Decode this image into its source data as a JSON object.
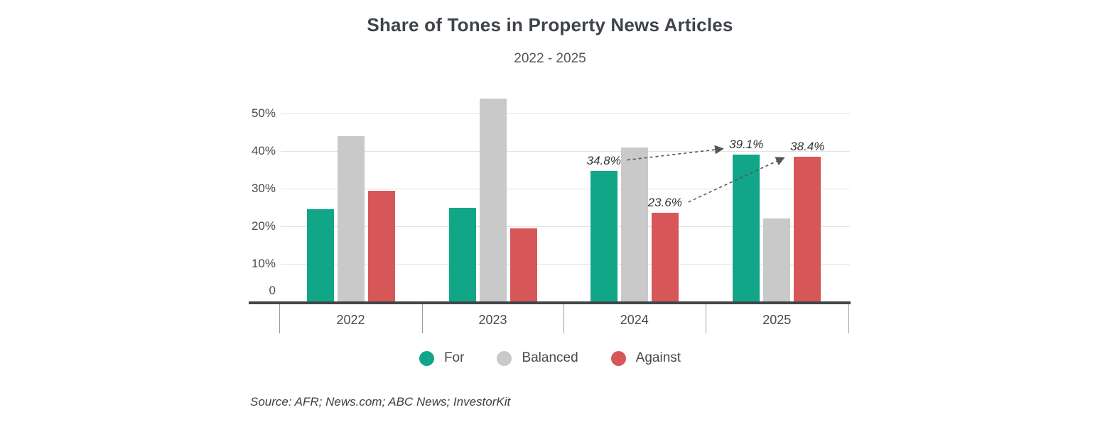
{
  "title": "Share of Tones in Property News Articles",
  "subtitle": "2022 - 2025",
  "source": "Source: AFR; News.com; ABC News; InvestorKit",
  "colors": {
    "for": "#12a689",
    "balanced": "#c9c9c9",
    "against": "#d75759",
    "axis": "#41464b",
    "gridline": "#e3e3e3"
  },
  "legend": [
    {
      "label": "For",
      "color": "#12a689"
    },
    {
      "label": "Balanced",
      "color": "#c9c9c9"
    },
    {
      "label": "Against",
      "color": "#d75759"
    }
  ],
  "chart_data": {
    "type": "bar",
    "title": "Share of Tones in Property News Articles",
    "subtitle": "2022 - 2025",
    "categories": [
      "2022",
      "2023",
      "2024",
      "2025"
    ],
    "series": [
      {
        "name": "For",
        "color": "#12a689",
        "values": [
          24.5,
          25.0,
          34.8,
          39.1
        ]
      },
      {
        "name": "Balanced",
        "color": "#c9c9c9",
        "values": [
          44.0,
          54.0,
          41.0,
          22.0
        ]
      },
      {
        "name": "Against",
        "color": "#d75759",
        "values": [
          29.5,
          19.5,
          23.6,
          38.4
        ]
      }
    ],
    "y_ticks": [
      {
        "label": "0",
        "value": 0
      },
      {
        "label": "10%",
        "value": 10
      },
      {
        "label": "20%",
        "value": 20
      },
      {
        "label": "30%",
        "value": 30
      },
      {
        "label": "40%",
        "value": 40
      },
      {
        "label": "50%",
        "value": 50
      }
    ],
    "ylim": [
      0,
      56
    ],
    "grid": "horizontal",
    "legend_position": "bottom",
    "annotations": [
      {
        "series": "For",
        "category": "2024",
        "text": "34.8%"
      },
      {
        "series": "Against",
        "category": "2024",
        "text": "23.6%"
      },
      {
        "series": "For",
        "category": "2025",
        "text": "39.1%"
      },
      {
        "series": "Against",
        "category": "2025",
        "text": "38.4%"
      }
    ],
    "arrows": [
      {
        "from_annotation": 0,
        "to_annotation": 2,
        "style": "dashed"
      },
      {
        "from_annotation": 1,
        "to_annotation": 3,
        "style": "dashed"
      }
    ]
  }
}
